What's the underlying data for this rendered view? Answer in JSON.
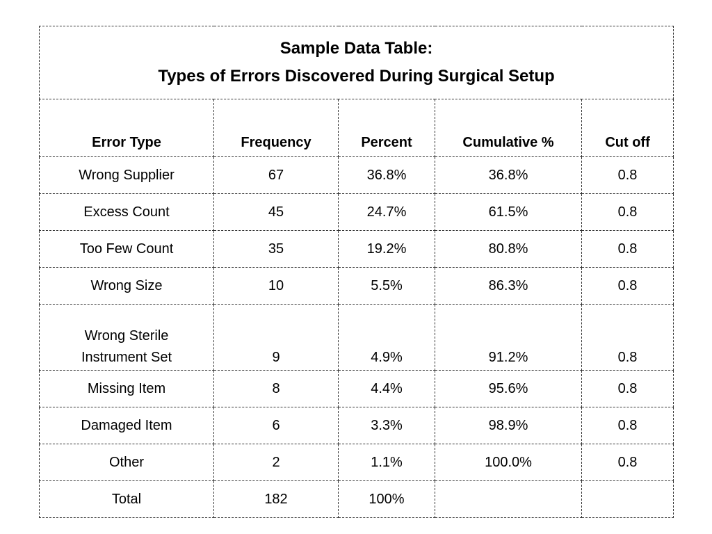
{
  "title": {
    "line1": "Sample Data Table:",
    "line2": "Types of Errors Discovered During Surgical Setup"
  },
  "columns": [
    "Error Type",
    "Frequency",
    "Percent",
    "Cumulative %",
    "Cut off"
  ],
  "rows": [
    {
      "error_type": [
        "Wrong Supplier"
      ],
      "frequency": "67",
      "percent": "36.8%",
      "cumulative": "36.8%",
      "cutoff": "0.8"
    },
    {
      "error_type": [
        "Excess Count"
      ],
      "frequency": "45",
      "percent": "24.7%",
      "cumulative": "61.5%",
      "cutoff": "0.8"
    },
    {
      "error_type": [
        "Too Few Count"
      ],
      "frequency": "35",
      "percent": "19.2%",
      "cumulative": "80.8%",
      "cutoff": "0.8"
    },
    {
      "error_type": [
        "Wrong Size"
      ],
      "frequency": "10",
      "percent": "5.5%",
      "cumulative": "86.3%",
      "cutoff": "0.8"
    },
    {
      "error_type": [
        "Wrong Sterile",
        "Instrument Set"
      ],
      "frequency": "9",
      "percent": "4.9%",
      "cumulative": "91.2%",
      "cutoff": "0.8"
    },
    {
      "error_type": [
        "Missing Item"
      ],
      "frequency": "8",
      "percent": "4.4%",
      "cumulative": "95.6%",
      "cutoff": "0.8"
    },
    {
      "error_type": [
        "Damaged Item"
      ],
      "frequency": "6",
      "percent": "3.3%",
      "cumulative": "98.9%",
      "cutoff": "0.8"
    },
    {
      "error_type": [
        "Other"
      ],
      "frequency": "2",
      "percent": "1.1%",
      "cumulative": "100.0%",
      "cutoff": "0.8"
    },
    {
      "error_type": [
        "Total"
      ],
      "frequency": "182",
      "percent": "100%",
      "cumulative": "",
      "cutoff": ""
    }
  ]
}
